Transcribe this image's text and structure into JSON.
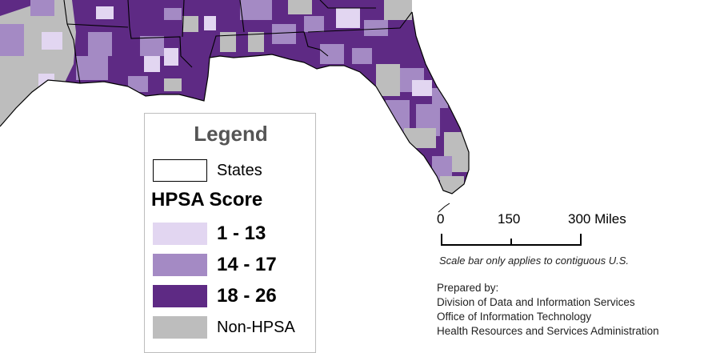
{
  "map": {
    "colors": {
      "water": "#ffffff",
      "range_1_13": "#e2d6f1",
      "range_14_17": "#a48ac4",
      "range_18_26": "#5e2a84",
      "non_hpsa": "#bdbdbd",
      "state_border": "#000000"
    }
  },
  "legend": {
    "title": "Legend",
    "states_label": "States",
    "score_heading": "HPSA Score",
    "items": [
      {
        "label": "1 - 13",
        "color": "#e2d6f1"
      },
      {
        "label": "14 - 17",
        "color": "#a48ac4"
      },
      {
        "label": "18 - 26",
        "color": "#5e2a84"
      },
      {
        "label": "Non-HPSA",
        "color": "#bdbdbd"
      }
    ]
  },
  "scale_bar": {
    "ticks": [
      "0",
      "150",
      "300 Miles"
    ],
    "note": "Scale bar only applies to contiguous U.S."
  },
  "credits": {
    "line1": "Prepared by:",
    "line2": "Division of Data and Information Services",
    "line3": "Office of Information Technology",
    "line4": "Health Resources and Services Administration"
  }
}
